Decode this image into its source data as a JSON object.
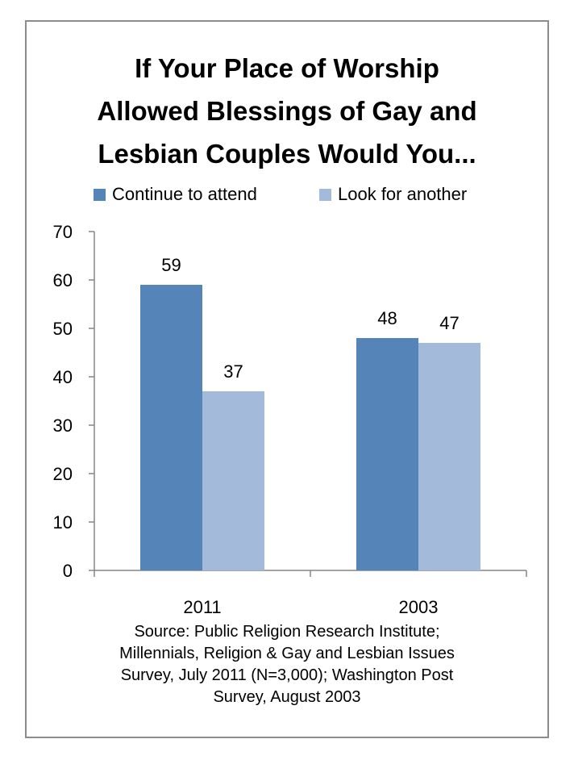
{
  "chart_data": {
    "type": "bar",
    "title_lines": [
      "If Your Place of Worship",
      "Allowed Blessings of Gay and",
      "Lesbian Couples Would You..."
    ],
    "categories": [
      "2011",
      "2003"
    ],
    "series": [
      {
        "name": "Continue to attend",
        "color": "#5585B8",
        "values": [
          59,
          48
        ]
      },
      {
        "name": "Look for another",
        "color": "#A4BADB",
        "values": [
          37,
          47
        ]
      }
    ],
    "ylim": [
      0,
      70
    ],
    "yticks": [
      0,
      10,
      20,
      30,
      40,
      50,
      60,
      70
    ],
    "grid": false,
    "legend_position": "top",
    "data_labels": true,
    "source_lines": [
      "Source: Public Religion Research Institute;",
      "Millennials, Religion & Gay and Lesbian Issues",
      "Survey, July 2011 (N=3,000); Washington Post",
      "Survey, August 2003"
    ]
  }
}
